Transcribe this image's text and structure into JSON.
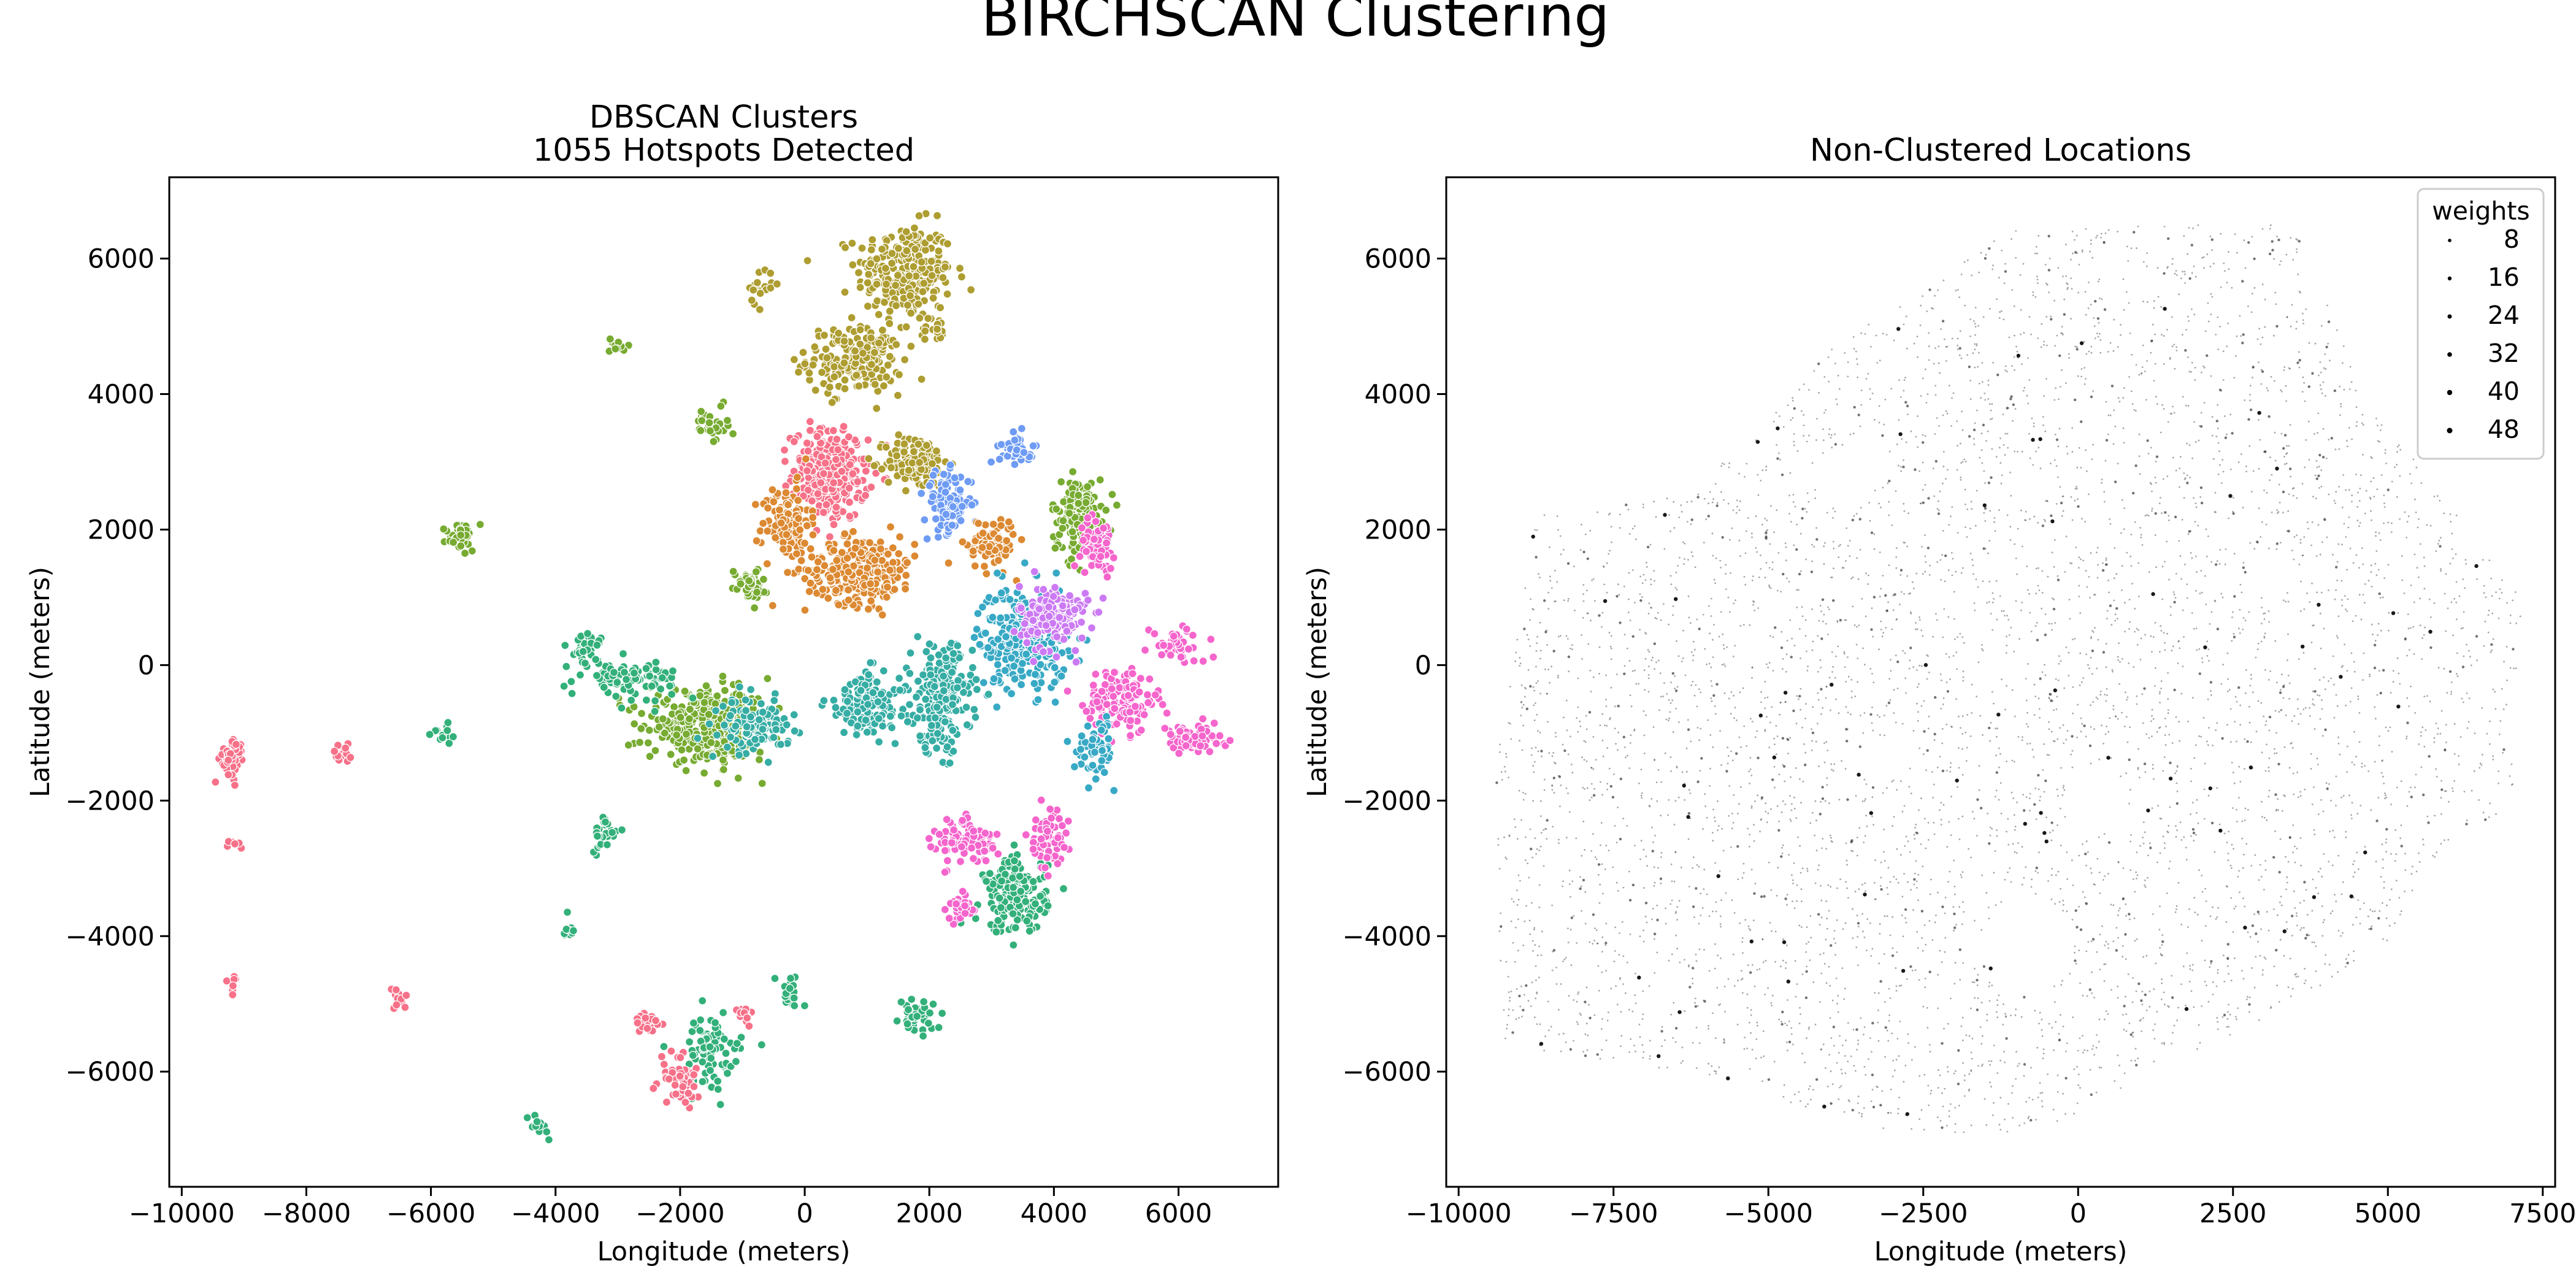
{
  "figure": {
    "suptitle": "BIRCHSCAN Clustering"
  },
  "chart_data": [
    {
      "type": "scatter",
      "title": "DBSCAN Clusters",
      "subtitle": "1055 Hotspots Detected",
      "xlabel": "Longitude (meters)",
      "ylabel": "Latitude (meters)",
      "xlim": [
        -10200,
        7600
      ],
      "ylim": [
        -7700,
        7200
      ],
      "xticks": [
        -10000,
        -8000,
        -6000,
        -4000,
        -2000,
        0,
        2000,
        4000,
        6000
      ],
      "yticks": [
        -6000,
        -4000,
        -2000,
        0,
        2000,
        4000,
        6000
      ],
      "xtick_labels": [
        "−10000",
        "−8000",
        "−6000",
        "−4000",
        "−2000",
        "0",
        "2000",
        "4000",
        "6000"
      ],
      "ytick_labels": [
        "−6000",
        "−4000",
        "−2000",
        "0",
        "2000",
        "4000",
        "6000"
      ],
      "grid": false,
      "hue_palette": [
        "#f77189",
        "#dc8932",
        "#ae9d31",
        "#77ab31",
        "#33b07a",
        "#36ada4",
        "#38a9c5",
        "#6e9bf4",
        "#cc7af4",
        "#f565cc"
      ],
      "groups": [
        {
          "cx": 1600,
          "cy": 5800,
          "rx": 700,
          "ry": 650,
          "n": 260,
          "c": 2
        },
        {
          "cx": 800,
          "cy": 4500,
          "rx": 700,
          "ry": 450,
          "n": 200,
          "c": 2
        },
        {
          "cx": 400,
          "cy": 2800,
          "rx": 550,
          "ry": 600,
          "n": 320,
          "c": 0
        },
        {
          "cx": -300,
          "cy": 2100,
          "rx": 350,
          "ry": 500,
          "n": 120,
          "c": 1
        },
        {
          "cx": 1800,
          "cy": 3000,
          "rx": 450,
          "ry": 350,
          "n": 140,
          "c": 2
        },
        {
          "cx": 900,
          "cy": 1400,
          "rx": 800,
          "ry": 450,
          "n": 260,
          "c": 1
        },
        {
          "cx": 2300,
          "cy": 2400,
          "rx": 350,
          "ry": 400,
          "n": 100,
          "c": 7
        },
        {
          "cx": 3000,
          "cy": 1800,
          "rx": 350,
          "ry": 350,
          "n": 90,
          "c": 1
        },
        {
          "cx": 3400,
          "cy": 3200,
          "rx": 250,
          "ry": 200,
          "n": 40,
          "c": 7
        },
        {
          "cx": 3500,
          "cy": 400,
          "rx": 650,
          "ry": 700,
          "n": 280,
          "c": 6
        },
        {
          "cx": 4000,
          "cy": 700,
          "rx": 500,
          "ry": 450,
          "n": 160,
          "c": 8
        },
        {
          "cx": 4400,
          "cy": 2200,
          "rx": 400,
          "ry": 500,
          "n": 150,
          "c": 3
        },
        {
          "cx": 4700,
          "cy": 1800,
          "rx": 250,
          "ry": 350,
          "n": 60,
          "c": 9
        },
        {
          "cx": 5100,
          "cy": -500,
          "rx": 500,
          "ry": 450,
          "n": 140,
          "c": 9
        },
        {
          "cx": 6200,
          "cy": -1100,
          "rx": 500,
          "ry": 200,
          "n": 70,
          "c": 9
        },
        {
          "cx": 6000,
          "cy": 300,
          "rx": 400,
          "ry": 250,
          "n": 40,
          "c": 9
        },
        {
          "cx": 2200,
          "cy": -500,
          "rx": 450,
          "ry": 700,
          "n": 220,
          "c": 5
        },
        {
          "cx": 1000,
          "cy": -600,
          "rx": 600,
          "ry": 450,
          "n": 140,
          "c": 5
        },
        {
          "cx": -1500,
          "cy": -900,
          "rx": 900,
          "ry": 450,
          "n": 380,
          "c": 3
        },
        {
          "cx": -800,
          "cy": -900,
          "rx": 500,
          "ry": 350,
          "n": 120,
          "c": 5
        },
        {
          "cx": -2800,
          "cy": -200,
          "rx": 700,
          "ry": 250,
          "n": 90,
          "c": 4
        },
        {
          "cx": -3500,
          "cy": 250,
          "rx": 250,
          "ry": 200,
          "n": 35,
          "c": 4
        },
        {
          "cx": -900,
          "cy": 1200,
          "rx": 250,
          "ry": 200,
          "n": 50,
          "c": 3
        },
        {
          "cx": -1500,
          "cy": 3600,
          "rx": 250,
          "ry": 300,
          "n": 30,
          "c": 3
        },
        {
          "cx": -3000,
          "cy": 4700,
          "rx": 120,
          "ry": 150,
          "n": 12,
          "c": 3
        },
        {
          "cx": -5500,
          "cy": 1900,
          "rx": 250,
          "ry": 200,
          "n": 35,
          "c": 3
        },
        {
          "cx": 2600,
          "cy": -2600,
          "rx": 450,
          "ry": 300,
          "n": 90,
          "c": 9
        },
        {
          "cx": 3400,
          "cy": -3400,
          "rx": 450,
          "ry": 500,
          "n": 180,
          "c": 4
        },
        {
          "cx": 3900,
          "cy": -2600,
          "rx": 300,
          "ry": 400,
          "n": 60,
          "c": 9
        },
        {
          "cx": 2500,
          "cy": -3600,
          "rx": 200,
          "ry": 200,
          "n": 30,
          "c": 9
        },
        {
          "cx": 1800,
          "cy": -5200,
          "rx": 250,
          "ry": 200,
          "n": 40,
          "c": 4
        },
        {
          "cx": -1500,
          "cy": -5700,
          "rx": 450,
          "ry": 500,
          "n": 80,
          "c": 4
        },
        {
          "cx": -2000,
          "cy": -6100,
          "rx": 300,
          "ry": 400,
          "n": 50,
          "c": 0
        },
        {
          "cx": -2500,
          "cy": -5300,
          "rx": 200,
          "ry": 200,
          "n": 20,
          "c": 0
        },
        {
          "cx": -3200,
          "cy": -2500,
          "rx": 200,
          "ry": 250,
          "n": 30,
          "c": 4
        },
        {
          "cx": -9200,
          "cy": -1400,
          "rx": 180,
          "ry": 300,
          "n": 45,
          "c": 0
        },
        {
          "cx": -7400,
          "cy": -1300,
          "rx": 180,
          "ry": 150,
          "n": 20,
          "c": 0
        },
        {
          "cx": -9200,
          "cy": -2650,
          "rx": 150,
          "ry": 60,
          "n": 8,
          "c": 0
        },
        {
          "cx": -9200,
          "cy": -4700,
          "rx": 80,
          "ry": 120,
          "n": 8,
          "c": 0
        },
        {
          "cx": -6500,
          "cy": -4900,
          "rx": 120,
          "ry": 150,
          "n": 12,
          "c": 0
        },
        {
          "cx": -5800,
          "cy": -1000,
          "rx": 150,
          "ry": 150,
          "n": 14,
          "c": 4
        },
        {
          "cx": -4300,
          "cy": -6800,
          "rx": 150,
          "ry": 150,
          "n": 12,
          "c": 4
        },
        {
          "cx": -3800,
          "cy": -3900,
          "rx": 120,
          "ry": 150,
          "n": 10,
          "c": 4
        },
        {
          "cx": -200,
          "cy": -4800,
          "rx": 200,
          "ry": 200,
          "n": 20,
          "c": 4
        },
        {
          "cx": -1000,
          "cy": -5200,
          "rx": 150,
          "ry": 200,
          "n": 12,
          "c": 0
        },
        {
          "cx": 2100,
          "cy": 5000,
          "rx": 200,
          "ry": 200,
          "n": 20,
          "c": 2
        },
        {
          "cx": -700,
          "cy": 5600,
          "rx": 200,
          "ry": 250,
          "n": 18,
          "c": 2
        },
        {
          "cx": 4700,
          "cy": -1200,
          "rx": 300,
          "ry": 400,
          "n": 60,
          "c": 6
        }
      ]
    },
    {
      "type": "scatter",
      "title": "Non-Clustered Locations",
      "xlabel": "Longitude (meters)",
      "ylabel": "Latitude (meters)",
      "xlim": [
        -10200,
        7700
      ],
      "ylim": [
        -7700,
        7200
      ],
      "xticks": [
        -10000,
        -7500,
        -5000,
        -2500,
        0,
        2500,
        5000,
        7500
      ],
      "yticks": [
        -6000,
        -4000,
        -2000,
        0,
        2000,
        4000,
        6000
      ],
      "xtick_labels": [
        "−10000",
        "−7500",
        "−5000",
        "−2500",
        "0",
        "2500",
        "5000",
        "7500"
      ],
      "ytick_labels": [
        "−6000",
        "−4000",
        "−2000",
        "0",
        "2000",
        "4000",
        "6000"
      ],
      "grid": false,
      "point_color": "#000000",
      "region": [
        [
          -9300,
          -5600
        ],
        [
          -9400,
          -1500
        ],
        [
          -8800,
          2200
        ],
        [
          -6400,
          2500
        ],
        [
          -4700,
          3900
        ],
        [
          -4000,
          4700
        ],
        [
          -2900,
          5300
        ],
        [
          -1300,
          6400
        ],
        [
          1100,
          6500
        ],
        [
          3500,
          6500
        ],
        [
          4600,
          4000
        ],
        [
          7200,
          1000
        ],
        [
          7000,
          -2200
        ],
        [
          6100,
          -2400
        ],
        [
          5000,
          -4100
        ],
        [
          3500,
          -5000
        ],
        [
          1600,
          -5900
        ],
        [
          -600,
          -6900
        ],
        [
          -3000,
          -6900
        ],
        [
          -6500,
          -6000
        ]
      ],
      "holes": [
        {
          "cx": -800,
          "cy": -4100,
          "r": 700
        },
        {
          "cx": 300,
          "cy": -2000,
          "r": 500
        },
        {
          "cx": -3700,
          "cy": 2800,
          "r": 450
        },
        {
          "cx": -3200,
          "cy": -1400,
          "r": 350
        },
        {
          "cx": 3000,
          "cy": 1300,
          "r": 300
        }
      ],
      "legend": {
        "title": "weights",
        "position": "upper right",
        "items": [
          {
            "label": "8",
            "weight": 8
          },
          {
            "label": "16",
            "weight": 16
          },
          {
            "label": "24",
            "weight": 24
          },
          {
            "label": "32",
            "weight": 32
          },
          {
            "label": "40",
            "weight": 40
          },
          {
            "label": "48",
            "weight": 48
          }
        ]
      }
    }
  ]
}
